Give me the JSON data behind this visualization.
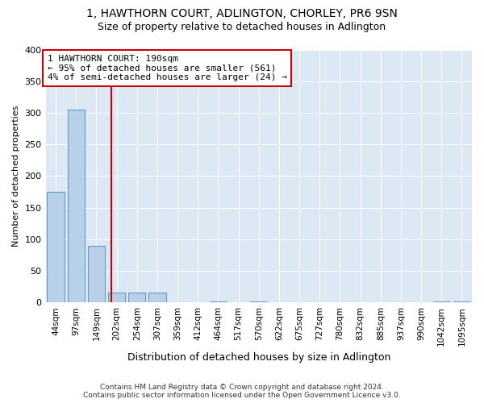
{
  "title": "1, HAWTHORN COURT, ADLINGTON, CHORLEY, PR6 9SN",
  "subtitle": "Size of property relative to detached houses in Adlington",
  "xlabel": "Distribution of detached houses by size in Adlington",
  "ylabel": "Number of detached properties",
  "bin_labels": [
    "44sqm",
    "97sqm",
    "149sqm",
    "202sqm",
    "254sqm",
    "307sqm",
    "359sqm",
    "412sqm",
    "464sqm",
    "517sqm",
    "570sqm",
    "622sqm",
    "675sqm",
    "727sqm",
    "780sqm",
    "832sqm",
    "885sqm",
    "937sqm",
    "990sqm",
    "1042sqm",
    "1095sqm"
  ],
  "bar_heights": [
    175,
    305,
    90,
    15,
    15,
    15,
    0,
    0,
    2,
    0,
    2,
    0,
    0,
    0,
    0,
    0,
    0,
    0,
    0,
    2,
    2
  ],
  "bar_color": "#b8d0e8",
  "bar_edge_color": "#6699cc",
  "property_line_x": 2.75,
  "property_line_color": "#cc0000",
  "annotation_text": "1 HAWTHORN COURT: 190sqm\n← 95% of detached houses are smaller (561)\n4% of semi-detached houses are larger (24) →",
  "annotation_box_color": "#ffffff",
  "annotation_box_edge_color": "#cc0000",
  "ylim": [
    0,
    400
  ],
  "yticks": [
    0,
    50,
    100,
    150,
    200,
    250,
    300,
    350,
    400
  ],
  "background_color": "#dce9f5",
  "footer_line1": "Contains HM Land Registry data © Crown copyright and database right 2024.",
  "footer_line2": "Contains public sector information licensed under the Open Government Licence v3.0.",
  "title_fontsize": 10,
  "subtitle_fontsize": 9
}
